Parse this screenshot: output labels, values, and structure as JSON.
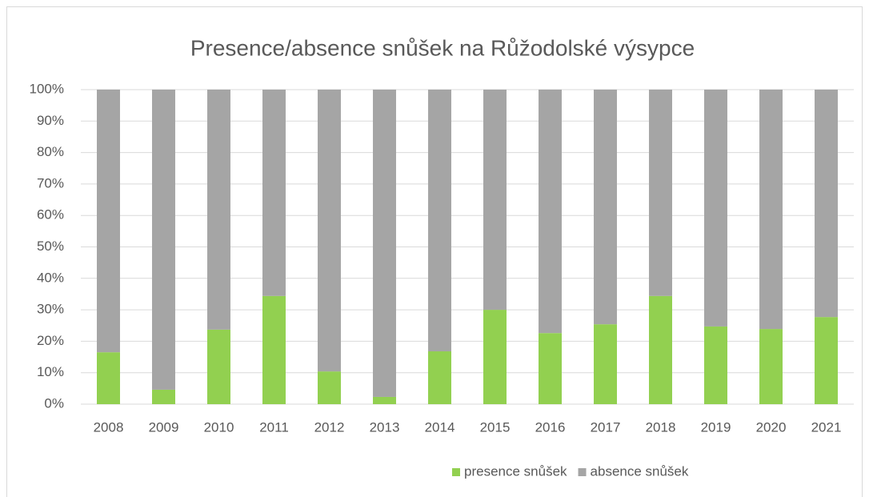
{
  "chart_data": {
    "type": "stacked_bar",
    "title": "Presence/absence snůšek na Růžodolské výsypce",
    "categories": [
      "2008",
      "2009",
      "2010",
      "2011",
      "2012",
      "2013",
      "2014",
      "2015",
      "2016",
      "2017",
      "2018",
      "2019",
      "2020",
      "2021"
    ],
    "series": [
      {
        "name": "presence snůšek",
        "color": "#92d050",
        "values": [
          16.5,
          4.6,
          23.7,
          34.4,
          10.4,
          2.3,
          16.8,
          30.0,
          22.6,
          25.4,
          34.4,
          24.7,
          23.9,
          27.7
        ]
      },
      {
        "name": "absence snůšek",
        "color": "#a5a5a5",
        "values": [
          83.5,
          95.4,
          76.3,
          65.6,
          89.6,
          97.7,
          83.2,
          70.0,
          77.4,
          74.6,
          65.6,
          75.3,
          76.1,
          72.3
        ]
      }
    ],
    "ylim": [
      0,
      100
    ],
    "yticks": [
      {
        "value": 0,
        "label": "0%"
      },
      {
        "value": 10,
        "label": "10%"
      },
      {
        "value": 20,
        "label": "20%"
      },
      {
        "value": 30,
        "label": "30%"
      },
      {
        "value": 40,
        "label": "40%"
      },
      {
        "value": 50,
        "label": "50%"
      },
      {
        "value": 60,
        "label": "60%"
      },
      {
        "value": 70,
        "label": "70%"
      },
      {
        "value": 80,
        "label": "80%"
      },
      {
        "value": 90,
        "label": "90%"
      },
      {
        "value": 100,
        "label": "100%"
      }
    ],
    "grid": true,
    "legend": "bottom"
  }
}
